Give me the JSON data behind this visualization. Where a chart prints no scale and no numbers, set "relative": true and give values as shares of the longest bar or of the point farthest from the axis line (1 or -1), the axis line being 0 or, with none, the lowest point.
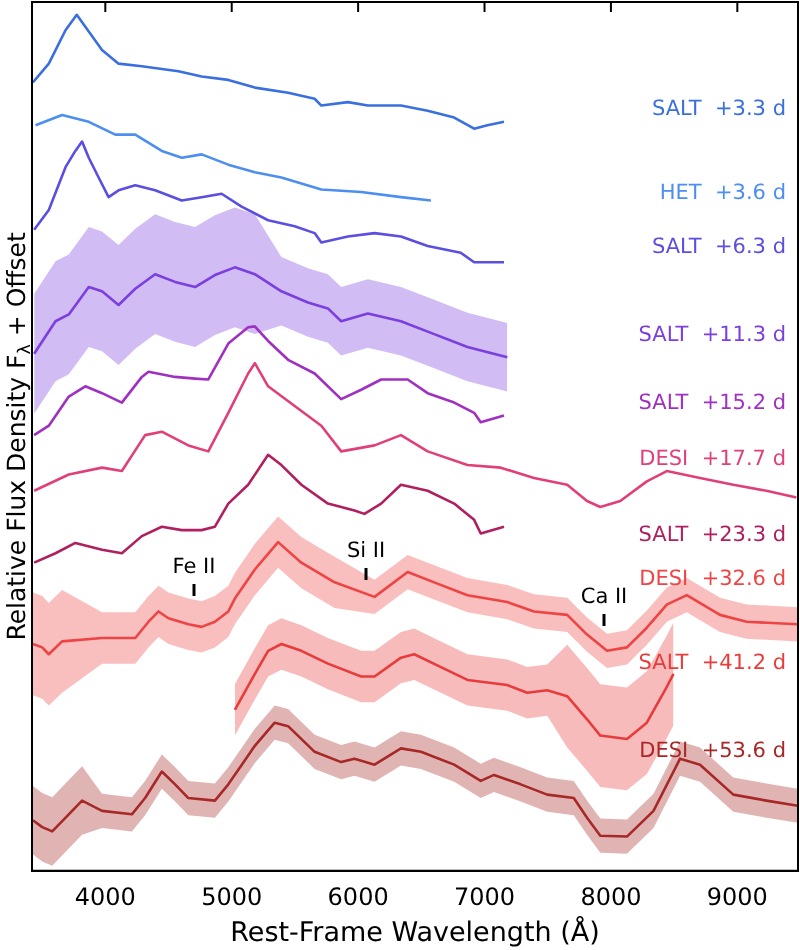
{
  "chart_data": {
    "type": "line",
    "relative": true,
    "legend": false,
    "marker": "none",
    "xlabel": "Rest-Frame Wavelength (Å)",
    "ylabel": "Relative Flux Density F$_{λ}$ + Offset",
    "xlim": [
      3420,
      9480
    ],
    "xticks": [
      4000,
      5000,
      6000,
      7000,
      8000,
      9000
    ],
    "annotations": [
      "Fe II",
      "Si II",
      "Ca II"
    ],
    "series": [
      {
        "name": "SALT  +3.3 d",
        "color": "#3a6fe0",
        "x": [
          3427,
          3553,
          3685,
          3774,
          3842,
          3974,
          4105,
          4289,
          4578,
          4762,
          4973,
          5183,
          5446,
          5656,
          5709,
          5919,
          6077,
          6339,
          6550,
          6760,
          6918,
          7023,
          7154
        ],
        "values": [
          0.921,
          0.943,
          0.982,
          1.0,
          0.986,
          0.959,
          0.943,
          0.94,
          0.934,
          0.928,
          0.924,
          0.915,
          0.909,
          0.902,
          0.894,
          0.898,
          0.894,
          0.894,
          0.888,
          0.88,
          0.867,
          0.871,
          0.875
        ]
      },
      {
        "name": "HET  +3.6 d",
        "color": "#4d8ff0",
        "x": [
          3448,
          3658,
          3869,
          4079,
          4237,
          4447,
          4605,
          4762,
          4973,
          5183,
          5393,
          5709,
          6024,
          6339,
          6576
        ],
        "values": [
          0.871,
          0.883,
          0.875,
          0.86,
          0.86,
          0.841,
          0.833,
          0.837,
          0.825,
          0.816,
          0.81,
          0.796,
          0.793,
          0.787,
          0.783
        ]
      },
      {
        "name": "SALT  +6.3 d",
        "color": "#5a4fe0",
        "x": [
          3437,
          3553,
          3685,
          3763,
          3816,
          3869,
          3947,
          4026,
          4105,
          4237,
          4394,
          4605,
          4762,
          4920,
          5078,
          5288,
          5498,
          5656,
          5709,
          5919,
          6130,
          6339,
          6550,
          6812,
          6918,
          7154
        ],
        "values": [
          0.749,
          0.772,
          0.822,
          0.841,
          0.852,
          0.833,
          0.81,
          0.787,
          0.795,
          0.801,
          0.795,
          0.783,
          0.787,
          0.791,
          0.776,
          0.76,
          0.753,
          0.745,
          0.734,
          0.741,
          0.745,
          0.741,
          0.73,
          0.722,
          0.711,
          0.711
        ]
      },
      {
        "name": "SALT  +11.3 d",
        "color": "#7b3fe0",
        "x": [
          3437,
          3606,
          3711,
          3869,
          3974,
          4105,
          4237,
          4394,
          4552,
          4710,
          4867,
          5025,
          5183,
          5393,
          5603,
          5761,
          5866,
          6077,
          6339,
          6602,
          6865,
          7180
        ],
        "values": [
          0.604,
          0.642,
          0.65,
          0.682,
          0.677,
          0.661,
          0.68,
          0.697,
          0.688,
          0.682,
          0.696,
          0.705,
          0.697,
          0.677,
          0.664,
          0.657,
          0.642,
          0.651,
          0.642,
          0.627,
          0.612,
          0.6
        ],
        "upper": [
          0.674,
          0.712,
          0.72,
          0.752,
          0.747,
          0.731,
          0.75,
          0.767,
          0.758,
          0.752,
          0.766,
          0.775,
          0.767,
          0.717,
          0.704,
          0.697,
          0.682,
          0.691,
          0.682,
          0.667,
          0.652,
          0.64
        ],
        "lower": [
          0.534,
          0.572,
          0.58,
          0.612,
          0.607,
          0.591,
          0.61,
          0.627,
          0.618,
          0.612,
          0.626,
          0.635,
          0.627,
          0.637,
          0.624,
          0.617,
          0.602,
          0.611,
          0.602,
          0.587,
          0.572,
          0.56
        ]
      },
      {
        "name": "SALT  +15.2 d",
        "color": "#a030c0",
        "x": [
          3437,
          3553,
          3711,
          3842,
          3974,
          4131,
          4289,
          4342,
          4552,
          4710,
          4815,
          4973,
          5130,
          5183,
          5288,
          5446,
          5656,
          5866,
          6024,
          6182,
          6392,
          6550,
          6760,
          6918,
          6970,
          7154
        ],
        "values": [
          0.509,
          0.52,
          0.554,
          0.566,
          0.558,
          0.547,
          0.577,
          0.583,
          0.577,
          0.575,
          0.574,
          0.616,
          0.635,
          0.636,
          0.619,
          0.597,
          0.581,
          0.551,
          0.562,
          0.574,
          0.574,
          0.558,
          0.547,
          0.535,
          0.524,
          0.532
        ]
      },
      {
        "name": "DESI  +17.7 d",
        "color": "#e0407a",
        "x": [
          3437,
          3711,
          3974,
          4131,
          4315,
          4447,
          4657,
          4815,
          4973,
          5130,
          5183,
          5288,
          5498,
          5709,
          5866,
          6130,
          6339,
          6550,
          6865,
          7128,
          7391,
          7654,
          7811,
          7916,
          8074,
          8284,
          8442,
          8705,
          8968,
          9230,
          9467
        ],
        "values": [
          0.444,
          0.463,
          0.471,
          0.467,
          0.509,
          0.513,
          0.497,
          0.49,
          0.535,
          0.581,
          0.593,
          0.566,
          0.543,
          0.52,
          0.49,
          0.497,
          0.509,
          0.49,
          0.474,
          0.471,
          0.459,
          0.451,
          0.432,
          0.425,
          0.432,
          0.455,
          0.467,
          0.459,
          0.451,
          0.444,
          0.436
        ]
      },
      {
        "name": "SALT  +23.3 d",
        "color": "#b02060",
        "x": [
          3437,
          3606,
          3763,
          3974,
          4131,
          4289,
          4447,
          4605,
          4762,
          4867,
          4973,
          5130,
          5288,
          5393,
          5551,
          5761,
          5971,
          6050,
          6182,
          6339,
          6550,
          6760,
          6918,
          6970,
          7154
        ],
        "values": [
          0.36,
          0.371,
          0.383,
          0.375,
          0.371,
          0.391,
          0.402,
          0.398,
          0.398,
          0.402,
          0.429,
          0.451,
          0.486,
          0.474,
          0.451,
          0.429,
          0.421,
          0.417,
          0.429,
          0.451,
          0.444,
          0.429,
          0.41,
          0.394,
          0.402
        ]
      },
      {
        "name": "DESI  +32.6 d",
        "color": "#ee4444",
        "x": [
          3427,
          3501,
          3553,
          3658,
          3974,
          4237,
          4342,
          4421,
          4499,
          4657,
          4762,
          4867,
          4973,
          5025,
          5183,
          5367,
          5551,
          5814,
          6130,
          6392,
          6602,
          6865,
          7180,
          7391,
          7654,
          7811,
          7969,
          8127,
          8284,
          8442,
          8600,
          8863,
          9073,
          9478
        ],
        "values": [
          0.265,
          0.261,
          0.253,
          0.268,
          0.272,
          0.272,
          0.291,
          0.303,
          0.295,
          0.288,
          0.285,
          0.291,
          0.303,
          0.318,
          0.352,
          0.384,
          0.36,
          0.337,
          0.32,
          0.349,
          0.337,
          0.322,
          0.314,
          0.303,
          0.299,
          0.276,
          0.257,
          0.261,
          0.284,
          0.311,
          0.322,
          0.299,
          0.291,
          0.288
        ],
        "upper": [
          0.325,
          0.321,
          0.313,
          0.328,
          0.302,
          0.302,
          0.321,
          0.333,
          0.325,
          0.318,
          0.315,
          0.321,
          0.333,
          0.348,
          0.382,
          0.414,
          0.39,
          0.367,
          0.34,
          0.369,
          0.357,
          0.342,
          0.334,
          0.323,
          0.319,
          0.296,
          0.277,
          0.281,
          0.304,
          0.331,
          0.342,
          0.319,
          0.311,
          0.308
        ],
        "lower": [
          0.205,
          0.201,
          0.193,
          0.208,
          0.242,
          0.242,
          0.261,
          0.273,
          0.265,
          0.258,
          0.255,
          0.261,
          0.273,
          0.288,
          0.322,
          0.354,
          0.33,
          0.307,
          0.3,
          0.329,
          0.317,
          0.302,
          0.294,
          0.283,
          0.279,
          0.256,
          0.237,
          0.241,
          0.264,
          0.291,
          0.302,
          0.279,
          0.271,
          0.268
        ]
      },
      {
        "name": "SALT  +41.2 d",
        "color": "#e83c3c",
        "x": [
          5025,
          5183,
          5288,
          5393,
          5551,
          5761,
          6024,
          6130,
          6339,
          6444,
          6655,
          6865,
          7180,
          7338,
          7496,
          7654,
          7811,
          7916,
          8127,
          8284,
          8442,
          8495
        ],
        "values": [
          0.188,
          0.23,
          0.257,
          0.265,
          0.257,
          0.242,
          0.227,
          0.227,
          0.249,
          0.253,
          0.238,
          0.223,
          0.217,
          0.208,
          0.211,
          0.204,
          0.177,
          0.158,
          0.154,
          0.173,
          0.215,
          0.23
        ],
        "upper": [
          0.218,
          0.26,
          0.287,
          0.295,
          0.287,
          0.272,
          0.257,
          0.257,
          0.279,
          0.283,
          0.268,
          0.253,
          0.247,
          0.238,
          0.241,
          0.264,
          0.237,
          0.218,
          0.214,
          0.233,
          0.275,
          0.29
        ],
        "lower": [
          0.158,
          0.2,
          0.227,
          0.235,
          0.227,
          0.212,
          0.197,
          0.197,
          0.219,
          0.223,
          0.208,
          0.193,
          0.187,
          0.178,
          0.181,
          0.144,
          0.117,
          0.098,
          0.094,
          0.113,
          0.155,
          0.17
        ]
      },
      {
        "name": "DESI  +53.6 d",
        "color": "#a82828",
        "x": [
          3427,
          3501,
          3580,
          3711,
          3816,
          3974,
          4210,
          4315,
          4447,
          4552,
          4657,
          4867,
          4973,
          5183,
          5340,
          5446,
          5656,
          5866,
          5971,
          6130,
          6339,
          6497,
          6760,
          6970,
          7075,
          7286,
          7496,
          7706,
          7811,
          7916,
          8127,
          8337,
          8547,
          8705,
          8968,
          9230,
          9478
        ],
        "values": [
          0.059,
          0.051,
          0.046,
          0.066,
          0.082,
          0.07,
          0.066,
          0.085,
          0.116,
          0.101,
          0.085,
          0.082,
          0.101,
          0.146,
          0.173,
          0.169,
          0.139,
          0.127,
          0.131,
          0.124,
          0.143,
          0.139,
          0.124,
          0.105,
          0.112,
          0.101,
          0.089,
          0.085,
          0.062,
          0.041,
          0.04,
          0.07,
          0.131,
          0.124,
          0.089,
          0.082,
          0.076
        ],
        "upper": [
          0.099,
          0.091,
          0.086,
          0.106,
          0.122,
          0.09,
          0.086,
          0.105,
          0.136,
          0.121,
          0.105,
          0.102,
          0.121,
          0.166,
          0.193,
          0.189,
          0.159,
          0.147,
          0.151,
          0.144,
          0.163,
          0.159,
          0.144,
          0.125,
          0.132,
          0.121,
          0.109,
          0.105,
          0.082,
          0.061,
          0.06,
          0.09,
          0.151,
          0.144,
          0.109,
          0.102,
          0.096
        ],
        "lower": [
          0.019,
          0.011,
          0.006,
          0.026,
          0.042,
          0.05,
          0.046,
          0.065,
          0.096,
          0.081,
          0.065,
          0.062,
          0.081,
          0.126,
          0.153,
          0.149,
          0.119,
          0.107,
          0.111,
          0.104,
          0.123,
          0.119,
          0.104,
          0.085,
          0.092,
          0.081,
          0.069,
          0.065,
          0.042,
          0.021,
          0.02,
          0.05,
          0.111,
          0.104,
          0.069,
          0.062,
          0.056
        ]
      }
    ]
  }
}
